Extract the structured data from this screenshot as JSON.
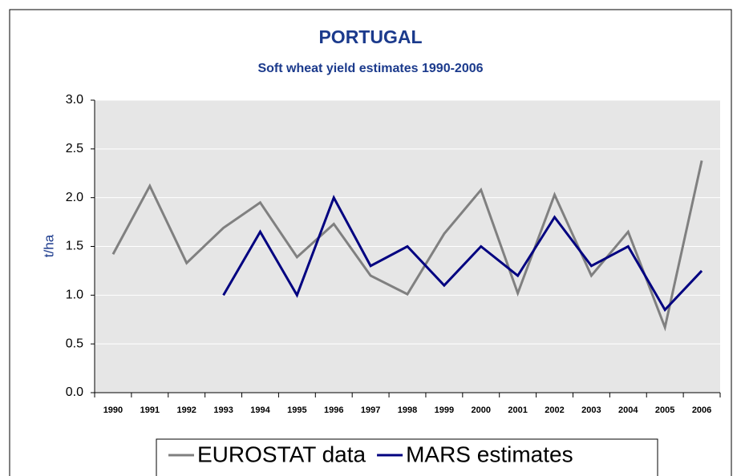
{
  "chart_data": {
    "type": "line",
    "title": "PORTUGAL",
    "subtitle": "Soft wheat yield estimates 1990-2006",
    "ylabel": "t/ha",
    "categories": [
      "1990",
      "1991",
      "1992",
      "1993",
      "1994",
      "1995",
      "1996",
      "1997",
      "1998",
      "1999",
      "2000",
      "2001",
      "2002",
      "2003",
      "2004",
      "2005",
      "2006"
    ],
    "series": [
      {
        "name": "EUROSTAT data",
        "color": "#808080",
        "values": [
          1.42,
          2.12,
          1.33,
          1.69,
          1.95,
          1.39,
          1.73,
          1.2,
          1.01,
          1.63,
          2.08,
          1.02,
          2.03,
          1.2,
          1.65,
          0.67,
          2.38
        ]
      },
      {
        "name": "MARS estimates",
        "color": "#000080",
        "values": [
          null,
          null,
          null,
          1.0,
          1.65,
          1.0,
          2.0,
          1.3,
          1.5,
          1.1,
          1.5,
          1.2,
          1.8,
          1.3,
          1.5,
          0.85,
          1.25
        ]
      }
    ],
    "ylim": [
      0,
      3
    ],
    "yticks": [
      {
        "value": 0,
        "label": "0.0"
      },
      0.5,
      {
        "value": 1,
        "label": "1.0"
      },
      1.5,
      {
        "value": 2,
        "label": "2.0"
      },
      2.5,
      {
        "value": 3,
        "label": "3.0"
      }
    ],
    "grid": true,
    "legend": "bottom"
  }
}
